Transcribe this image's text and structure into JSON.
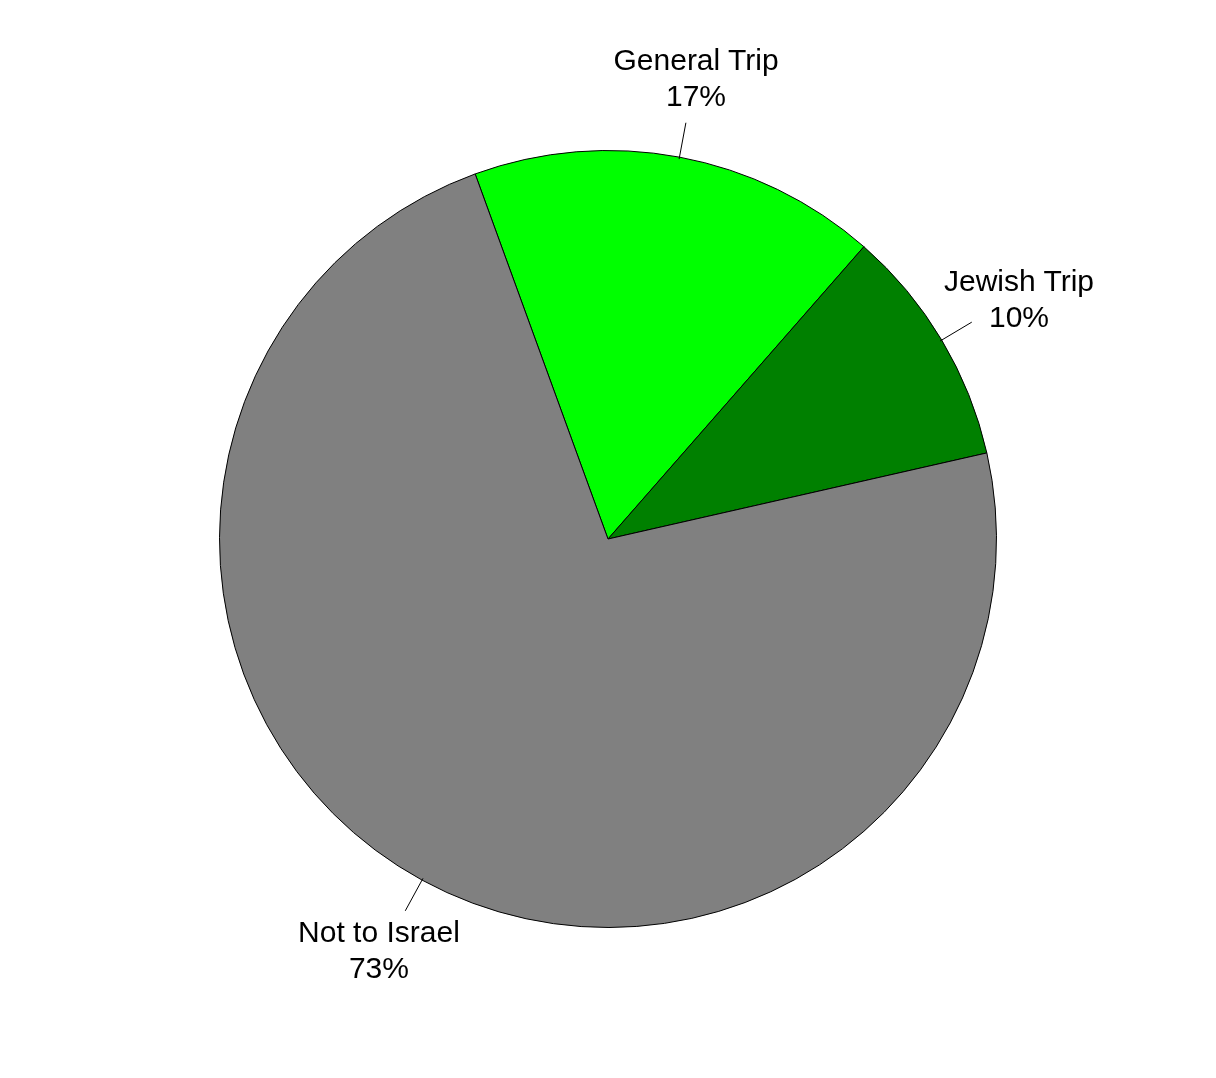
{
  "chart_data": {
    "type": "pie",
    "categories": [
      "General Trip",
      "Jewish Trip",
      "Not to Israel"
    ],
    "values": [
      17,
      10,
      73
    ],
    "value_labels": [
      "17%",
      "10%",
      "73%"
    ],
    "colors": [
      "#00ff00",
      "#008000",
      "#808080"
    ],
    "legend": false
  }
}
